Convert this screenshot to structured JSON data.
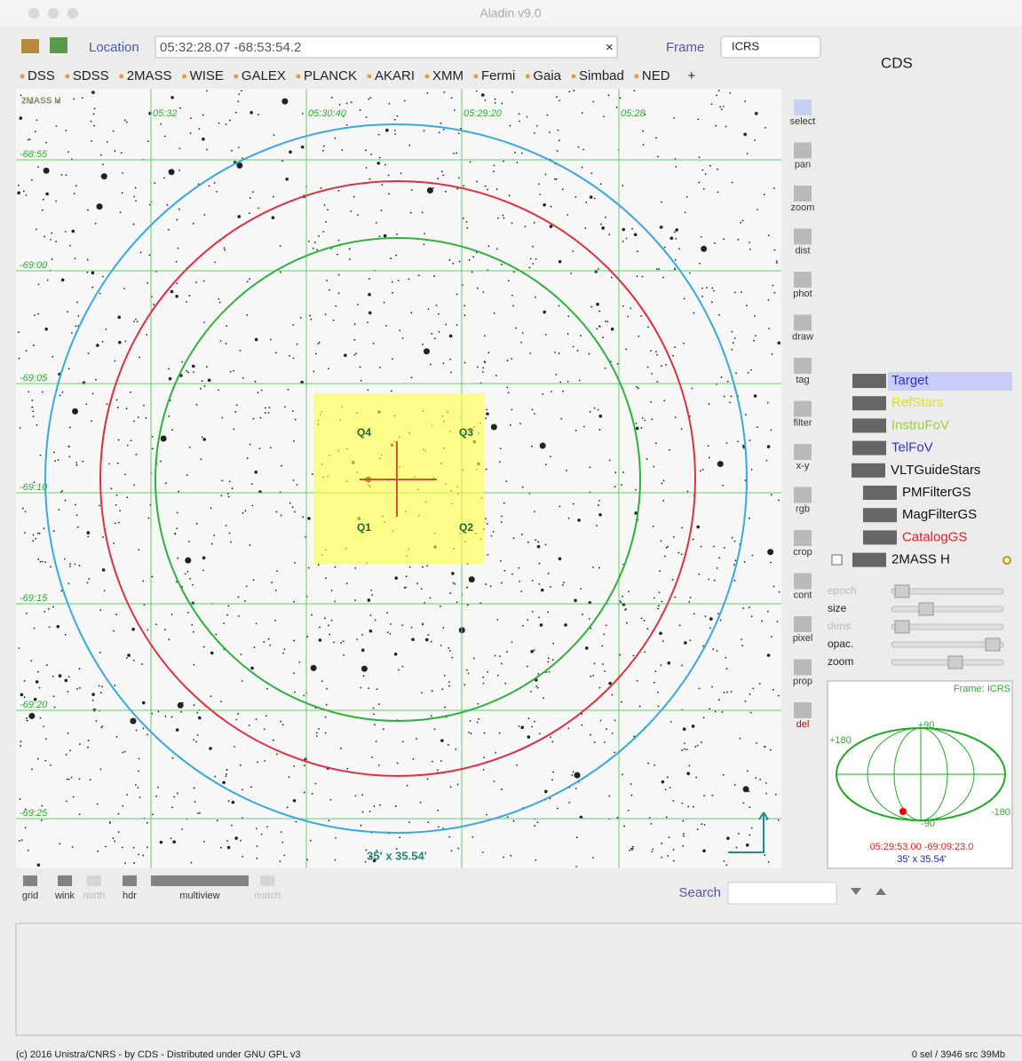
{
  "window": {
    "title": "Aladin v9.0"
  },
  "toolbar": {
    "location_label": "Location",
    "location_value": "05:32:28.07 -68:53:54.2",
    "clear": "×",
    "frame_label": "Frame",
    "frame_value": "ICRS",
    "server": "CDS"
  },
  "surveys": [
    "DSS",
    "SDSS",
    "2MASS",
    "WISE",
    "GALEX",
    "PLANCK",
    "AKARI",
    "XMM",
    "Fermi",
    "Gaia",
    "Simbad",
    "NED",
    "+"
  ],
  "image": {
    "survey_label": "2MASS H",
    "ra_labels": [
      "05:32",
      "05:30:40",
      "05:29:20",
      "05:28"
    ],
    "dec_labels": [
      "-68:55",
      "-69:00",
      "-69:05",
      "-69:10",
      "-69:15",
      "-69:20",
      "-69:25"
    ],
    "quadrants": [
      "Q4",
      "Q3",
      "Q1",
      "Q2"
    ],
    "scale": "35' x 35.54'"
  },
  "tools": [
    "select",
    "pan",
    "zoom",
    "dist",
    "phot",
    "draw",
    "tag",
    "filter",
    "x-y",
    "rgb",
    "crop",
    "cont",
    "pixel",
    "prop",
    "del"
  ],
  "layers": [
    {
      "name": "Target",
      "color": "#2a35c8"
    },
    {
      "name": "RefStars",
      "color": "#e0e020"
    },
    {
      "name": "InstruFoV",
      "color": "#a0cc40"
    },
    {
      "name": "TelFoV",
      "color": "#2a35c8"
    },
    {
      "name": "VLTGuideStars",
      "color": "#111111"
    },
    {
      "name": "PMFilterGS",
      "color": "#111111"
    },
    {
      "name": "MagFilterGS",
      "color": "#111111"
    },
    {
      "name": "CatalogGS",
      "color": "#e02020"
    },
    {
      "name": "2MASS H",
      "color": "#111111"
    }
  ],
  "sliders": [
    "epoch",
    "size",
    "dens.",
    "opac.",
    "zoom"
  ],
  "minimap": {
    "frame": "Frame: ICRS",
    "north": "+90",
    "east": "+180",
    "west": "-180",
    "south": "-90",
    "position": "05:29:53.00 -69:09:23.0",
    "fov": "35' x 35.54'"
  },
  "bottom_tools": [
    "grid",
    "wink",
    "north",
    "hdr",
    "multiview",
    "match"
  ],
  "search_label": "Search",
  "footer": {
    "left": "(c) 2016 Unistra/CNRS - by CDS - Distributed under GNU GPL v3",
    "right": "0 sel / 3946 src   39Mb"
  }
}
